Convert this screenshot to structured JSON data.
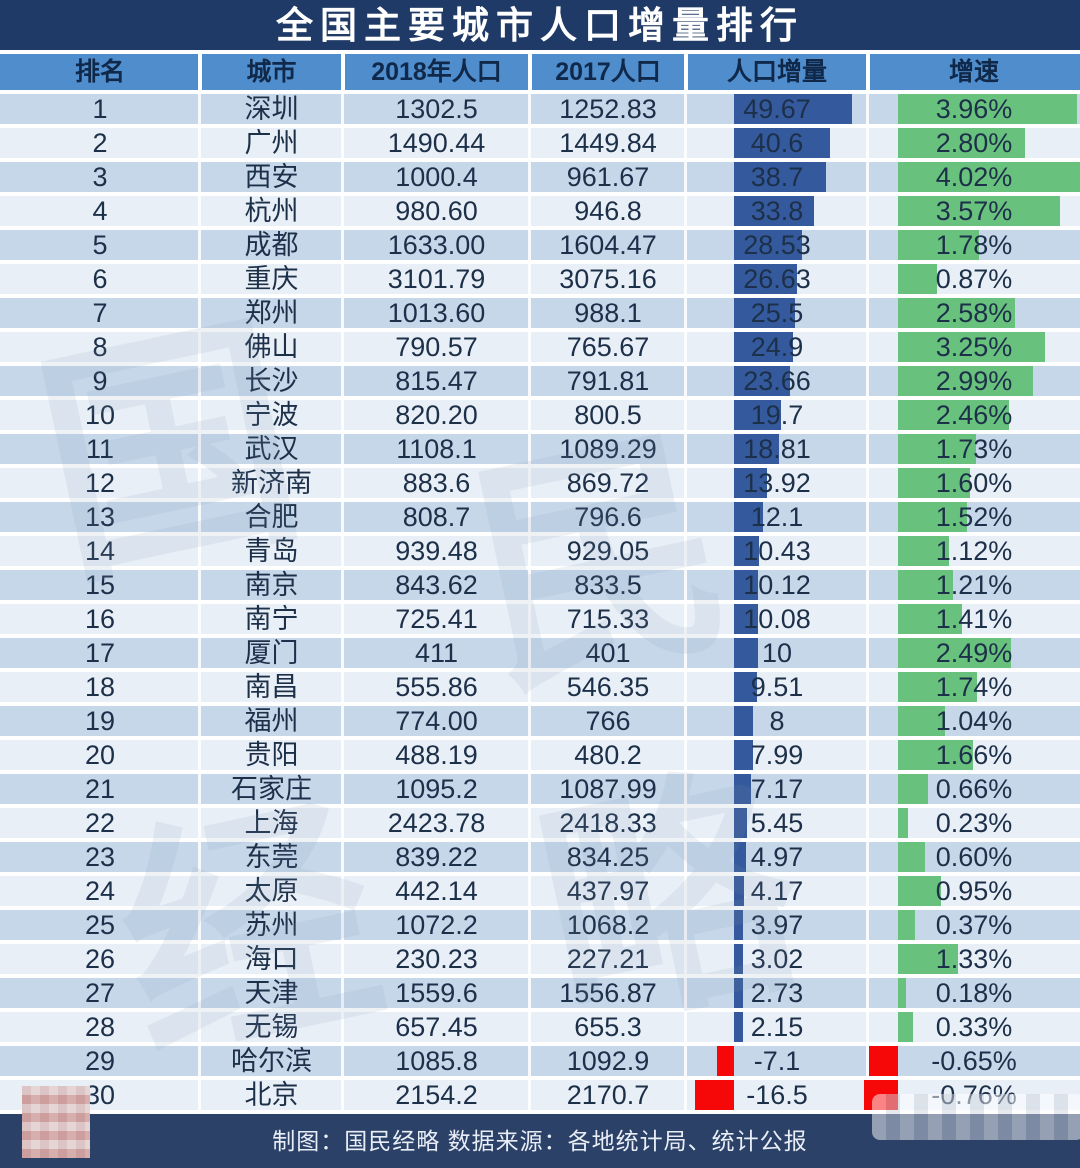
{
  "title": "全国主要城市人口增量排行",
  "footer": {
    "credit": "制图：国民经略 数据来源：各地统计局、统计公报"
  },
  "watermark": {
    "chars": [
      "国",
      "民",
      "经",
      "略"
    ]
  },
  "colors": {
    "title_bg": "#1f3a66",
    "header_bg": "#4f8dcd",
    "row_odd": "#c6d7ea",
    "row_even": "#e9eff7",
    "bar_blue": "#34599c",
    "bar_green": "#69c17e",
    "bar_red": "#f60708",
    "footer_bg": "#2b4168"
  },
  "chart_data": {
    "type": "table",
    "title": "全国主要城市人口增量排行",
    "columns": [
      "排名",
      "城市",
      "2018年人口",
      "2017人口",
      "人口增量",
      "增速"
    ],
    "bar_columns": {
      "人口增量": {
        "style": "horizontal-bar",
        "color_positive": "#34599c",
        "color_negative": "#f60708",
        "max_abs": 49.67
      },
      "增速": {
        "style": "horizontal-bar",
        "color_positive": "#69c17e",
        "color_negative": "#f60708",
        "max_abs": 4.02
      }
    },
    "rows": [
      {
        "rank": "1",
        "city": "深圳",
        "pop2018": "1302.5",
        "pop2017": "1252.83",
        "delta": 49.67,
        "delta_label": "49.67",
        "growth": 3.96,
        "growth_label": "3.96%"
      },
      {
        "rank": "2",
        "city": "广州",
        "pop2018": "1490.44",
        "pop2017": "1449.84",
        "delta": 40.6,
        "delta_label": "40.6",
        "growth": 2.8,
        "growth_label": "2.80%"
      },
      {
        "rank": "3",
        "city": "西安",
        "pop2018": "1000.4",
        "pop2017": "961.67",
        "delta": 38.7,
        "delta_label": "38.7",
        "growth": 4.02,
        "growth_label": "4.02%"
      },
      {
        "rank": "4",
        "city": "杭州",
        "pop2018": "980.60",
        "pop2017": "946.8",
        "delta": 33.8,
        "delta_label": "33.8",
        "growth": 3.57,
        "growth_label": "3.57%"
      },
      {
        "rank": "5",
        "city": "成都",
        "pop2018": "1633.00",
        "pop2017": "1604.47",
        "delta": 28.53,
        "delta_label": "28.53",
        "growth": 1.78,
        "growth_label": "1.78%"
      },
      {
        "rank": "6",
        "city": "重庆",
        "pop2018": "3101.79",
        "pop2017": "3075.16",
        "delta": 26.63,
        "delta_label": "26.63",
        "growth": 0.87,
        "growth_label": "0.87%"
      },
      {
        "rank": "7",
        "city": "郑州",
        "pop2018": "1013.60",
        "pop2017": "988.1",
        "delta": 25.5,
        "delta_label": "25.5",
        "growth": 2.58,
        "growth_label": "2.58%"
      },
      {
        "rank": "8",
        "city": "佛山",
        "pop2018": "790.57",
        "pop2017": "765.67",
        "delta": 24.9,
        "delta_label": "24.9",
        "growth": 3.25,
        "growth_label": "3.25%"
      },
      {
        "rank": "9",
        "city": "长沙",
        "pop2018": "815.47",
        "pop2017": "791.81",
        "delta": 23.66,
        "delta_label": "23.66",
        "growth": 2.99,
        "growth_label": "2.99%"
      },
      {
        "rank": "10",
        "city": "宁波",
        "pop2018": "820.20",
        "pop2017": "800.5",
        "delta": 19.7,
        "delta_label": "19.7",
        "growth": 2.46,
        "growth_label": "2.46%"
      },
      {
        "rank": "11",
        "city": "武汉",
        "pop2018": "1108.1",
        "pop2017": "1089.29",
        "delta": 18.81,
        "delta_label": "18.81",
        "growth": 1.73,
        "growth_label": "1.73%"
      },
      {
        "rank": "12",
        "city": "新济南",
        "pop2018": "883.6",
        "pop2017": "869.72",
        "delta": 13.92,
        "delta_label": "13.92",
        "growth": 1.6,
        "growth_label": "1.60%"
      },
      {
        "rank": "13",
        "city": "合肥",
        "pop2018": "808.7",
        "pop2017": "796.6",
        "delta": 12.1,
        "delta_label": "12.1",
        "growth": 1.52,
        "growth_label": "1.52%"
      },
      {
        "rank": "14",
        "city": "青岛",
        "pop2018": "939.48",
        "pop2017": "929.05",
        "delta": 10.43,
        "delta_label": "10.43",
        "growth": 1.12,
        "growth_label": "1.12%"
      },
      {
        "rank": "15",
        "city": "南京",
        "pop2018": "843.62",
        "pop2017": "833.5",
        "delta": 10.12,
        "delta_label": "10.12",
        "growth": 1.21,
        "growth_label": "1.21%"
      },
      {
        "rank": "16",
        "city": "南宁",
        "pop2018": "725.41",
        "pop2017": "715.33",
        "delta": 10.08,
        "delta_label": "10.08",
        "growth": 1.41,
        "growth_label": "1.41%"
      },
      {
        "rank": "17",
        "city": "厦门",
        "pop2018": "411",
        "pop2017": "401",
        "delta": 10,
        "delta_label": "10",
        "growth": 2.49,
        "growth_label": "2.49%"
      },
      {
        "rank": "18",
        "city": "南昌",
        "pop2018": "555.86",
        "pop2017": "546.35",
        "delta": 9.51,
        "delta_label": "9.51",
        "growth": 1.74,
        "growth_label": "1.74%"
      },
      {
        "rank": "19",
        "city": "福州",
        "pop2018": "774.00",
        "pop2017": "766",
        "delta": 8,
        "delta_label": "8",
        "growth": 1.04,
        "growth_label": "1.04%"
      },
      {
        "rank": "20",
        "city": "贵阳",
        "pop2018": "488.19",
        "pop2017": "480.2",
        "delta": 7.99,
        "delta_label": "7.99",
        "growth": 1.66,
        "growth_label": "1.66%"
      },
      {
        "rank": "21",
        "city": "石家庄",
        "pop2018": "1095.2",
        "pop2017": "1087.99",
        "delta": 7.17,
        "delta_label": "7.17",
        "growth": 0.66,
        "growth_label": "0.66%"
      },
      {
        "rank": "22",
        "city": "上海",
        "pop2018": "2423.78",
        "pop2017": "2418.33",
        "delta": 5.45,
        "delta_label": "5.45",
        "growth": 0.23,
        "growth_label": "0.23%"
      },
      {
        "rank": "23",
        "city": "东莞",
        "pop2018": "839.22",
        "pop2017": "834.25",
        "delta": 4.97,
        "delta_label": "4.97",
        "growth": 0.6,
        "growth_label": "0.60%"
      },
      {
        "rank": "24",
        "city": "太原",
        "pop2018": "442.14",
        "pop2017": "437.97",
        "delta": 4.17,
        "delta_label": "4.17",
        "growth": 0.95,
        "growth_label": "0.95%"
      },
      {
        "rank": "25",
        "city": "苏州",
        "pop2018": "1072.2",
        "pop2017": "1068.2",
        "delta": 3.97,
        "delta_label": "3.97",
        "growth": 0.37,
        "growth_label": "0.37%"
      },
      {
        "rank": "26",
        "city": "海口",
        "pop2018": "230.23",
        "pop2017": "227.21",
        "delta": 3.02,
        "delta_label": "3.02",
        "growth": 1.33,
        "growth_label": "1.33%"
      },
      {
        "rank": "27",
        "city": "天津",
        "pop2018": "1559.6",
        "pop2017": "1556.87",
        "delta": 2.73,
        "delta_label": "2.73",
        "growth": 0.18,
        "growth_label": "0.18%"
      },
      {
        "rank": "28",
        "city": "无锡",
        "pop2018": "657.45",
        "pop2017": "655.3",
        "delta": 2.15,
        "delta_label": "2.15",
        "growth": 0.33,
        "growth_label": "0.33%"
      },
      {
        "rank": "29",
        "city": "哈尔滨",
        "pop2018": "1085.8",
        "pop2017": "1092.9",
        "delta": -7.1,
        "delta_label": "-7.1",
        "growth": -0.65,
        "growth_label": "-0.65%"
      },
      {
        "rank": "30",
        "city": "北京",
        "pop2018": "2154.2",
        "pop2017": "2170.7",
        "delta": -16.5,
        "delta_label": "-16.5",
        "growth": -0.76,
        "growth_label": "-0.76%"
      }
    ]
  }
}
